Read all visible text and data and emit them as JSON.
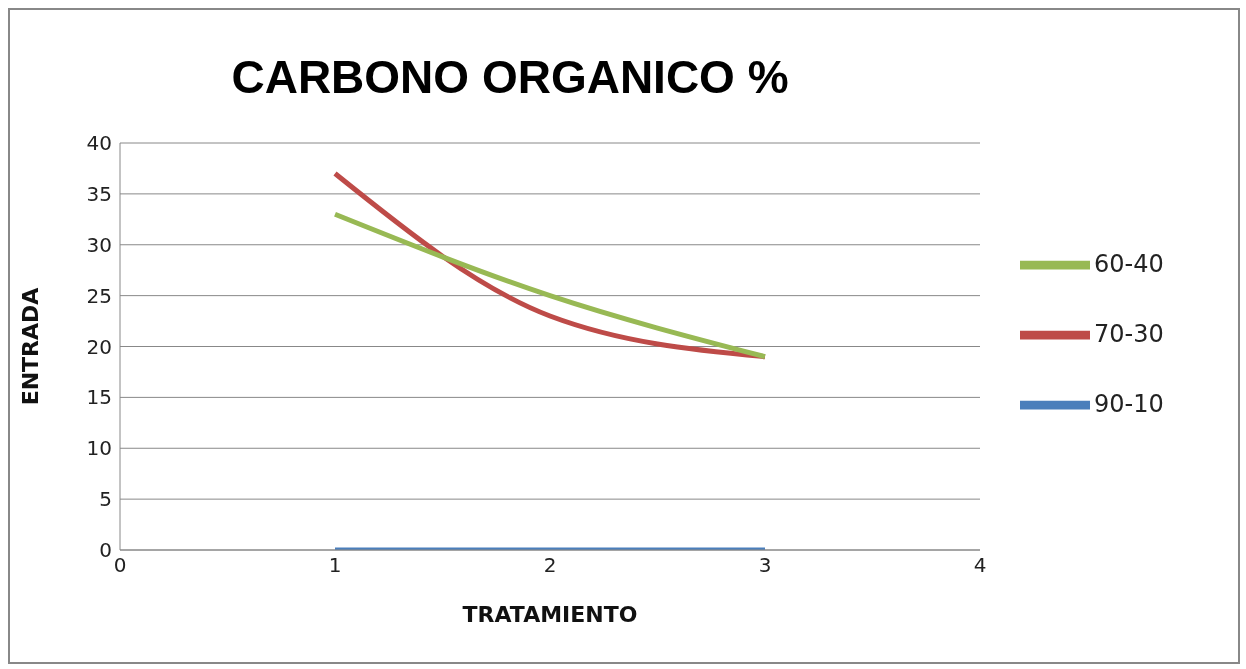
{
  "chart_data": {
    "type": "line",
    "title": "CARBONO ORGANICO %",
    "xlabel": "TRATAMIENTO",
    "ylabel": "ENTRADA",
    "x": [
      1,
      2,
      3
    ],
    "series": [
      {
        "name": "90-10",
        "color": "#4a7ebb",
        "values": [
          0,
          0,
          0
        ]
      },
      {
        "name": "70-30",
        "color": "#be4b48",
        "values": [
          37,
          23,
          19
        ]
      },
      {
        "name": "60-40",
        "color": "#98b954",
        "values": [
          33,
          25,
          19
        ]
      }
    ],
    "xlim": [
      0,
      4
    ],
    "xticks": [
      0,
      1,
      2,
      3,
      4
    ],
    "ylim": [
      0,
      40
    ],
    "yticks": [
      0,
      5,
      10,
      15,
      20,
      25,
      30,
      35,
      40
    ],
    "grid": "y",
    "legend": "right",
    "marker": "none",
    "line_style": "solid"
  }
}
